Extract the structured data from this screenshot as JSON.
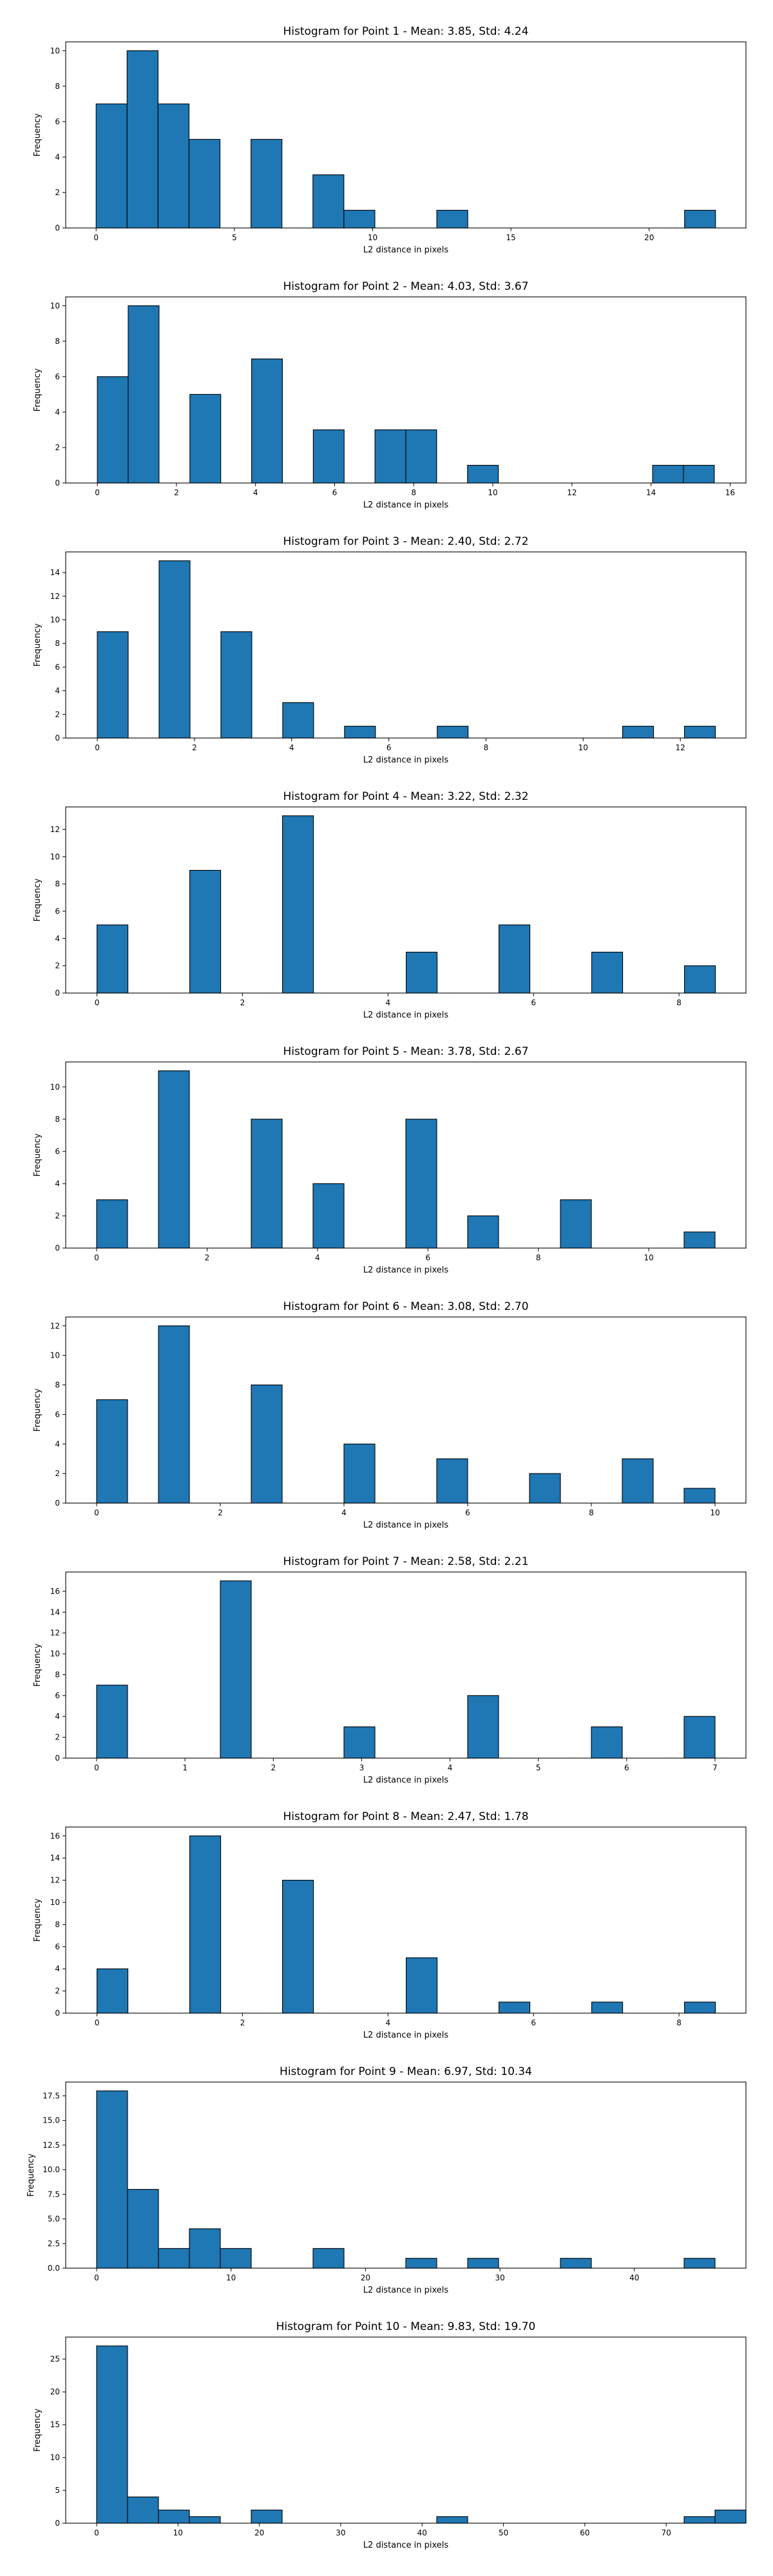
{
  "colors": {
    "bar_fill": "#1f77b4",
    "bar_edge": "#000000",
    "axes": "#000000",
    "background": "#ffffff"
  },
  "chart_data": [
    {
      "type": "bar",
      "title": "Histogram for Point 1 - Mean: 3.85, Std: 4.24",
      "xlabel": "L2 distance in pixels",
      "ylabel": "Frequency",
      "xlim": [
        -1.1,
        23.5
      ],
      "ylim": [
        0,
        10.5
      ],
      "xticks": [
        0,
        5,
        10,
        15,
        20
      ],
      "yticks": [
        0,
        2,
        4,
        6,
        8,
        10
      ],
      "bin_width": 1.12,
      "bins": [
        {
          "x": 0.0,
          "count": 7
        },
        {
          "x": 1.12,
          "count": 10
        },
        {
          "x": 2.24,
          "count": 7
        },
        {
          "x": 3.36,
          "count": 5
        },
        {
          "x": 5.6,
          "count": 5
        },
        {
          "x": 7.84,
          "count": 3
        },
        {
          "x": 8.96,
          "count": 1
        },
        {
          "x": 12.32,
          "count": 1
        },
        {
          "x": 21.28,
          "count": 1
        }
      ]
    },
    {
      "type": "bar",
      "title": "Histogram for Point 2 - Mean: 4.03, Std: 3.67",
      "xlabel": "L2 distance in pixels",
      "ylabel": "Frequency",
      "xlim": [
        -0.8,
        16.4
      ],
      "ylim": [
        0,
        10.5
      ],
      "xticks": [
        0,
        2,
        4,
        6,
        8,
        10,
        12,
        14,
        16
      ],
      "yticks": [
        0,
        2,
        4,
        6,
        8,
        10
      ],
      "bin_width": 0.78,
      "bins": [
        {
          "x": 0.0,
          "count": 6
        },
        {
          "x": 0.78,
          "count": 10
        },
        {
          "x": 2.34,
          "count": 5
        },
        {
          "x": 3.9,
          "count": 7
        },
        {
          "x": 5.46,
          "count": 3
        },
        {
          "x": 7.02,
          "count": 3
        },
        {
          "x": 7.8,
          "count": 3
        },
        {
          "x": 9.36,
          "count": 1
        },
        {
          "x": 14.04,
          "count": 1
        },
        {
          "x": 14.82,
          "count": 1
        }
      ]
    },
    {
      "type": "bar",
      "title": "Histogram for Point 3 - Mean: 2.40, Std: 2.72",
      "xlabel": "L2 distance in pixels",
      "ylabel": "Frequency",
      "xlim": [
        -0.65,
        13.35
      ],
      "ylim": [
        0,
        15.75
      ],
      "xticks": [
        0,
        2,
        4,
        6,
        8,
        10,
        12
      ],
      "yticks": [
        0,
        2,
        4,
        6,
        8,
        10,
        12,
        14
      ],
      "bin_width": 0.636,
      "bins": [
        {
          "x": 0.0,
          "count": 9
        },
        {
          "x": 1.272,
          "count": 15
        },
        {
          "x": 2.544,
          "count": 9
        },
        {
          "x": 3.816,
          "count": 3
        },
        {
          "x": 5.088,
          "count": 1
        },
        {
          "x": 6.996,
          "count": 1
        },
        {
          "x": 10.812,
          "count": 1
        },
        {
          "x": 12.084,
          "count": 1
        }
      ]
    },
    {
      "type": "bar",
      "title": "Histogram for Point 4 - Mean: 3.22, Std: 2.32",
      "xlabel": "L2 distance in pixels",
      "ylabel": "Frequency",
      "xlim": [
        -0.43,
        8.92
      ],
      "ylim": [
        0,
        13.65
      ],
      "xticks": [
        0,
        2,
        4,
        6,
        8
      ],
      "yticks": [
        0,
        2,
        4,
        6,
        8,
        10,
        12
      ],
      "bin_width": 0.425,
      "bins": [
        {
          "x": 0.0,
          "count": 5
        },
        {
          "x": 1.275,
          "count": 9
        },
        {
          "x": 2.55,
          "count": 13
        },
        {
          "x": 4.25,
          "count": 3
        },
        {
          "x": 5.525,
          "count": 5
        },
        {
          "x": 6.8,
          "count": 3
        },
        {
          "x": 8.075,
          "count": 2
        }
      ]
    },
    {
      "type": "bar",
      "title": "Histogram for Point 5 - Mean: 3.78, Std: 2.67",
      "xlabel": "L2 distance in pixels",
      "ylabel": "Frequency",
      "xlim": [
        -0.56,
        11.76
      ],
      "ylim": [
        0,
        11.55
      ],
      "xticks": [
        0,
        2,
        4,
        6,
        8,
        10
      ],
      "yticks": [
        0,
        2,
        4,
        6,
        8,
        10
      ],
      "bin_width": 0.56,
      "bins": [
        {
          "x": 0.0,
          "count": 3
        },
        {
          "x": 1.12,
          "count": 11
        },
        {
          "x": 2.8,
          "count": 8
        },
        {
          "x": 3.92,
          "count": 4
        },
        {
          "x": 5.6,
          "count": 8
        },
        {
          "x": 6.72,
          "count": 2
        },
        {
          "x": 8.4,
          "count": 3
        },
        {
          "x": 10.64,
          "count": 1
        }
      ]
    },
    {
      "type": "bar",
      "title": "Histogram for Point 6 - Mean: 3.08, Std: 2.70",
      "xlabel": "L2 distance in pixels",
      "ylabel": "Frequency",
      "xlim": [
        -0.5,
        10.5
      ],
      "ylim": [
        0,
        12.6
      ],
      "xticks": [
        0,
        2,
        4,
        6,
        8,
        10
      ],
      "yticks": [
        0,
        2,
        4,
        6,
        8,
        10,
        12
      ],
      "bin_width": 0.5,
      "bins": [
        {
          "x": 0.0,
          "count": 7
        },
        {
          "x": 1.0,
          "count": 12
        },
        {
          "x": 2.5,
          "count": 8
        },
        {
          "x": 4.0,
          "count": 4
        },
        {
          "x": 5.5,
          "count": 3
        },
        {
          "x": 7.0,
          "count": 2
        },
        {
          "x": 8.5,
          "count": 3
        },
        {
          "x": 9.5,
          "count": 1
        }
      ]
    },
    {
      "type": "bar",
      "title": "Histogram for Point 7 - Mean: 2.58, Std: 2.21",
      "xlabel": "L2 distance in pixels",
      "ylabel": "Frequency",
      "xlim": [
        -0.35,
        7.35
      ],
      "ylim": [
        0,
        17.85
      ],
      "xticks": [
        0,
        1,
        2,
        3,
        4,
        5,
        6,
        7
      ],
      "yticks": [
        0,
        2,
        4,
        6,
        8,
        10,
        12,
        14,
        16
      ],
      "bin_width": 0.35,
      "bins": [
        {
          "x": 0.0,
          "count": 7
        },
        {
          "x": 1.4,
          "count": 17
        },
        {
          "x": 2.8,
          "count": 3
        },
        {
          "x": 4.2,
          "count": 6
        },
        {
          "x": 5.6,
          "count": 3
        },
        {
          "x": 6.65,
          "count": 4
        }
      ]
    },
    {
      "type": "bar",
      "title": "Histogram for Point 8 - Mean: 2.47, Std: 1.78",
      "xlabel": "L2 distance in pixels",
      "ylabel": "Frequency",
      "xlim": [
        -0.43,
        8.92
      ],
      "ylim": [
        0,
        16.8
      ],
      "xticks": [
        0,
        2,
        4,
        6,
        8
      ],
      "yticks": [
        0,
        2,
        4,
        6,
        8,
        10,
        12,
        14,
        16
      ],
      "bin_width": 0.425,
      "bins": [
        {
          "x": 0.0,
          "count": 4
        },
        {
          "x": 1.275,
          "count": 16
        },
        {
          "x": 2.55,
          "count": 12
        },
        {
          "x": 4.25,
          "count": 5
        },
        {
          "x": 5.525,
          "count": 1
        },
        {
          "x": 6.8,
          "count": 1
        },
        {
          "x": 8.075,
          "count": 1
        }
      ]
    },
    {
      "type": "bar",
      "title": "Histogram for Point 9 - Mean: 6.97, Std: 10.34",
      "xlabel": "L2 distance in pixels",
      "ylabel": "Frequency",
      "xlim": [
        -2.3,
        48.3
      ],
      "ylim": [
        0,
        18.9
      ],
      "xticks": [
        0,
        10,
        20,
        30,
        40
      ],
      "yticks": [
        0.0,
        2.5,
        5.0,
        7.5,
        10.0,
        12.5,
        15.0,
        17.5
      ],
      "ytick_labels": [
        "0.0",
        "2.5",
        "5.0",
        "7.5",
        "10.0",
        "12.5",
        "15.0",
        "17.5"
      ],
      "bin_width": 2.3,
      "bins": [
        {
          "x": 0.0,
          "count": 18
        },
        {
          "x": 2.3,
          "count": 8
        },
        {
          "x": 4.6,
          "count": 2
        },
        {
          "x": 6.9,
          "count": 4
        },
        {
          "x": 9.2,
          "count": 2
        },
        {
          "x": 16.1,
          "count": 2
        },
        {
          "x": 23.0,
          "count": 1
        },
        {
          "x": 27.6,
          "count": 1
        },
        {
          "x": 34.5,
          "count": 1
        },
        {
          "x": 43.7,
          "count": 1
        }
      ]
    },
    {
      "type": "bar",
      "title": "Histogram for Point 10 - Mean: 9.83, Std: 19.70",
      "xlabel": "L2 distance in pixels",
      "ylabel": "Frequency",
      "xlim": [
        -3.8,
        79.8
      ],
      "ylim": [
        0,
        28.35
      ],
      "xticks": [
        0,
        10,
        20,
        30,
        40,
        50,
        60,
        70
      ],
      "yticks": [
        0,
        5,
        10,
        15,
        20,
        25
      ],
      "bin_width": 3.8,
      "bins": [
        {
          "x": 0.0,
          "count": 27
        },
        {
          "x": 3.8,
          "count": 4
        },
        {
          "x": 7.6,
          "count": 2
        },
        {
          "x": 11.4,
          "count": 1
        },
        {
          "x": 19.0,
          "count": 2
        },
        {
          "x": 41.8,
          "count": 1
        },
        {
          "x": 72.2,
          "count": 1
        },
        {
          "x": 76.0,
          "count": 2
        }
      ]
    }
  ]
}
